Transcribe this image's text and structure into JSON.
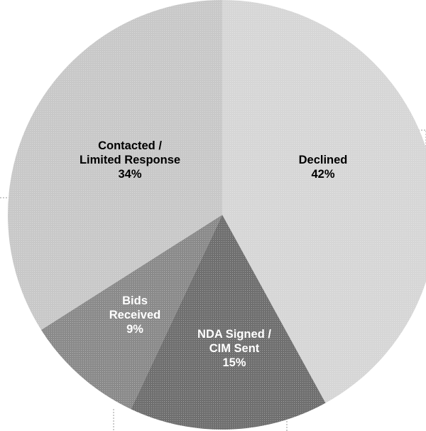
{
  "chart_data": {
    "type": "pie",
    "title": "",
    "slices": [
      {
        "label_lines": [
          "Declined",
          "42%"
        ],
        "value": 42,
        "color": "#d6d6d6",
        "label_color": "#000000"
      },
      {
        "label_lines": [
          "NDA Signed /",
          "CIM Sent",
          "15%"
        ],
        "value": 15,
        "color": "#6f6f6f",
        "label_color": "#ffffff"
      },
      {
        "label_lines": [
          "Bids",
          "Received",
          "9%"
        ],
        "value": 9,
        "color": "#8a8a8a",
        "label_color": "#ffffff"
      },
      {
        "label_lines": [
          "Contacted /",
          "Limited Response",
          "34%"
        ],
        "value": 34,
        "color": "#c8c8c8",
        "label_color": "#000000"
      }
    ]
  }
}
